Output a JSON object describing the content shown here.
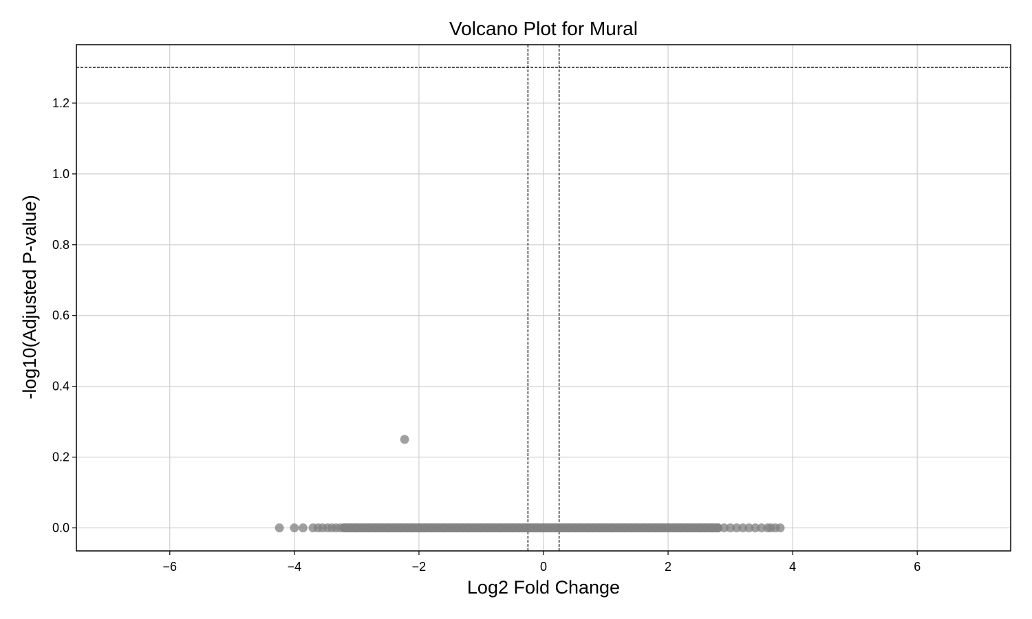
{
  "chart_data": {
    "type": "scatter",
    "title": "Volcano Plot for Mural",
    "xlabel": "Log2 Fold Change",
    "ylabel": "-log10(Adjusted P-value)",
    "xlim": [
      -7.5,
      7.5
    ],
    "ylim": [
      -0.065,
      1.365
    ],
    "x_ticks": [
      -6,
      -4,
      -2,
      0,
      2,
      4,
      6
    ],
    "x_tick_labels": [
      "−6",
      "−4",
      "−2",
      "0",
      "2",
      "4",
      "6"
    ],
    "y_ticks": [
      0.0,
      0.2,
      0.4,
      0.6,
      0.8,
      1.0,
      1.2
    ],
    "y_tick_labels": [
      "0.0",
      "0.2",
      "0.4",
      "0.6",
      "0.8",
      "1.0",
      "1.2"
    ],
    "grid": true,
    "thresholds": {
      "log2fc": [
        -0.25,
        0.25
      ],
      "neg_log10_padj": 1.301
    },
    "point_color": "#808080",
    "point_alpha": 0.75,
    "points": [
      {
        "x": -2.23,
        "y": 0.25
      },
      {
        "x": -4.24,
        "y": 0.0
      },
      {
        "x": -4.0,
        "y": 0.0
      },
      {
        "x": -3.86,
        "y": 0.0
      },
      {
        "x": -3.7,
        "y": 0.0
      },
      {
        "x": -3.62,
        "y": 0.0
      },
      {
        "x": -3.55,
        "y": 0.0
      },
      {
        "x": -3.47,
        "y": 0.0
      },
      {
        "x": -3.4,
        "y": 0.0
      },
      {
        "x": -3.33,
        "y": 0.0
      },
      {
        "x": -3.26,
        "y": 0.0
      },
      {
        "x": -3.2,
        "y": 0.0
      },
      {
        "x": -3.1,
        "y": 0.0
      },
      {
        "x": -3.0,
        "y": 0.0
      },
      {
        "x": -2.9,
        "y": 0.0
      },
      {
        "x": -2.8,
        "y": 0.0
      },
      {
        "x": -2.7,
        "y": 0.0
      },
      {
        "x": -2.6,
        "y": 0.0
      },
      {
        "x": -2.5,
        "y": 0.0
      },
      {
        "x": -2.4,
        "y": 0.0
      },
      {
        "x": -2.3,
        "y": 0.0
      },
      {
        "x": -2.2,
        "y": 0.0
      },
      {
        "x": -2.1,
        "y": 0.0
      },
      {
        "x": -2.0,
        "y": 0.0
      },
      {
        "x": -1.9,
        "y": 0.0
      },
      {
        "x": -1.8,
        "y": 0.0
      },
      {
        "x": -1.7,
        "y": 0.0
      },
      {
        "x": -1.6,
        "y": 0.0
      },
      {
        "x": -1.5,
        "y": 0.0
      },
      {
        "x": -1.4,
        "y": 0.0
      },
      {
        "x": -1.3,
        "y": 0.0
      },
      {
        "x": -1.2,
        "y": 0.0
      },
      {
        "x": -1.1,
        "y": 0.0
      },
      {
        "x": -1.0,
        "y": 0.0
      },
      {
        "x": -0.9,
        "y": 0.0
      },
      {
        "x": -0.8,
        "y": 0.0
      },
      {
        "x": -0.7,
        "y": 0.0
      },
      {
        "x": -0.6,
        "y": 0.0
      },
      {
        "x": -0.5,
        "y": 0.0
      },
      {
        "x": -0.4,
        "y": 0.0
      },
      {
        "x": -0.3,
        "y": 0.0
      },
      {
        "x": -0.2,
        "y": 0.0
      },
      {
        "x": -0.1,
        "y": 0.0
      },
      {
        "x": 0.0,
        "y": 0.0
      },
      {
        "x": 0.1,
        "y": 0.0
      },
      {
        "x": 0.2,
        "y": 0.0
      },
      {
        "x": 0.3,
        "y": 0.0
      },
      {
        "x": 0.4,
        "y": 0.0
      },
      {
        "x": 0.5,
        "y": 0.0
      },
      {
        "x": 0.6,
        "y": 0.0
      },
      {
        "x": 0.7,
        "y": 0.0
      },
      {
        "x": 0.8,
        "y": 0.0
      },
      {
        "x": 0.9,
        "y": 0.0
      },
      {
        "x": 1.0,
        "y": 0.0
      },
      {
        "x": 1.1,
        "y": 0.0
      },
      {
        "x": 1.2,
        "y": 0.0
      },
      {
        "x": 1.3,
        "y": 0.0
      },
      {
        "x": 1.4,
        "y": 0.0
      },
      {
        "x": 1.5,
        "y": 0.0
      },
      {
        "x": 1.6,
        "y": 0.0
      },
      {
        "x": 1.7,
        "y": 0.0
      },
      {
        "x": 1.8,
        "y": 0.0
      },
      {
        "x": 1.9,
        "y": 0.0
      },
      {
        "x": 2.0,
        "y": 0.0
      },
      {
        "x": 2.1,
        "y": 0.0
      },
      {
        "x": 2.2,
        "y": 0.0
      },
      {
        "x": 2.3,
        "y": 0.0
      },
      {
        "x": 2.4,
        "y": 0.0
      },
      {
        "x": 2.5,
        "y": 0.0
      },
      {
        "x": 2.6,
        "y": 0.0
      },
      {
        "x": 2.7,
        "y": 0.0
      },
      {
        "x": 2.8,
        "y": 0.0
      },
      {
        "x": 2.9,
        "y": 0.0
      },
      {
        "x": 3.0,
        "y": 0.0
      },
      {
        "x": 3.1,
        "y": 0.0
      },
      {
        "x": 3.2,
        "y": 0.0
      },
      {
        "x": 3.3,
        "y": 0.0
      },
      {
        "x": 3.4,
        "y": 0.0
      },
      {
        "x": 3.5,
        "y": 0.0
      },
      {
        "x": 3.6,
        "y": 0.0
      },
      {
        "x": 3.65,
        "y": 0.0
      },
      {
        "x": 3.72,
        "y": 0.0
      },
      {
        "x": 3.8,
        "y": 0.0
      }
    ]
  }
}
